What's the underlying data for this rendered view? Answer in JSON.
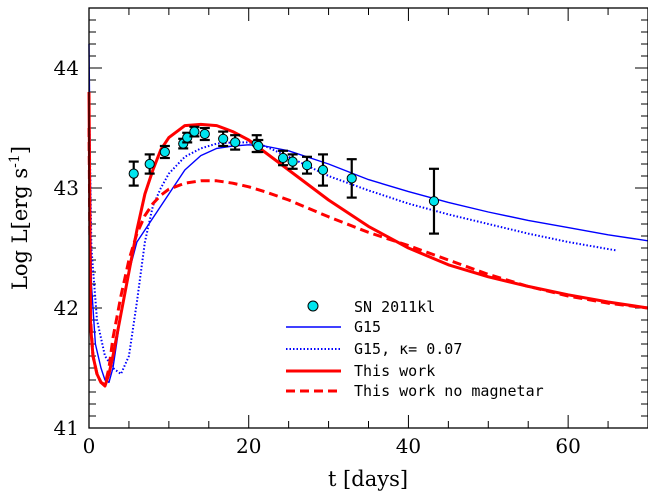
{
  "chart_data": {
    "type": "line",
    "xlabel": "t [days]",
    "ylabel_main": "Log L[erg s",
    "ylabel_sup": "-1",
    "ylabel_close": "]",
    "xlim": [
      0,
      70
    ],
    "ylim": [
      41,
      44.5
    ],
    "x_ticks": [
      0,
      20,
      40,
      60
    ],
    "y_ticks": [
      41,
      42,
      43,
      44
    ],
    "x_minor_step": 5,
    "y_minor_step": 0.1,
    "grid": false,
    "legend_position": "bottom-center",
    "colors": {
      "red": "#ff0000",
      "blue": "#0000ff",
      "points": "#00e5ee",
      "black": "#000000"
    },
    "observations": {
      "name": "SN 2011kl",
      "points": [
        {
          "x": 5.6,
          "y": 43.12,
          "err": 0.1
        },
        {
          "x": 7.6,
          "y": 43.2,
          "err": 0.08
        },
        {
          "x": 9.5,
          "y": 43.3,
          "err": 0.05
        },
        {
          "x": 11.8,
          "y": 43.37,
          "err": 0.04
        },
        {
          "x": 12.3,
          "y": 43.42,
          "err": 0.04
        },
        {
          "x": 13.2,
          "y": 43.47,
          "err": 0.04
        },
        {
          "x": 14.5,
          "y": 43.45,
          "err": 0.05
        },
        {
          "x": 16.8,
          "y": 43.41,
          "err": 0.06
        },
        {
          "x": 18.3,
          "y": 43.38,
          "err": 0.06
        },
        {
          "x": 21.0,
          "y": 43.37,
          "err": 0.07
        },
        {
          "x": 21.2,
          "y": 43.35,
          "err": 0.05
        },
        {
          "x": 24.3,
          "y": 43.25,
          "err": 0.06
        },
        {
          "x": 25.5,
          "y": 43.22,
          "err": 0.06
        },
        {
          "x": 27.3,
          "y": 43.19,
          "err": 0.07
        },
        {
          "x": 29.3,
          "y": 43.15,
          "err": 0.13
        },
        {
          "x": 32.9,
          "y": 43.08,
          "err": 0.16
        },
        {
          "x": 43.2,
          "y": 42.89,
          "err": 0.27
        }
      ]
    },
    "series": [
      {
        "name": "G15",
        "style": "solid-thin",
        "color": "#0000ff",
        "x": [
          0,
          0.3,
          0.8,
          1.5,
          2.0,
          2.5,
          3.0,
          4.0,
          5.0,
          6.0,
          7.0,
          8.0,
          10.0,
          12.0,
          14.0,
          16.0,
          18.0,
          20.0,
          22.0,
          25.0,
          30.0,
          35.0,
          40.0,
          45.0,
          50.0,
          55.0,
          60.0,
          65.0,
          70.0
        ],
        "y": [
          44.2,
          42.2,
          41.7,
          41.5,
          41.4,
          41.38,
          41.5,
          41.95,
          42.3,
          42.55,
          42.65,
          42.75,
          42.95,
          43.15,
          43.27,
          43.33,
          43.35,
          43.36,
          43.35,
          43.31,
          43.2,
          43.07,
          42.97,
          42.88,
          42.8,
          42.73,
          42.67,
          42.61,
          42.56
        ]
      },
      {
        "name": "G15, κ= 0.07",
        "style": "dotted",
        "color": "#0000ff",
        "x": [
          0,
          0.3,
          1.0,
          2.0,
          3.0,
          4.0,
          5.0,
          6.0,
          7.0,
          8.0,
          9.0,
          10.0,
          12.0,
          14.0,
          16.0,
          18.0,
          20.0,
          22.0,
          25.0,
          30.0,
          35.0,
          40.0,
          45.0,
          50.0,
          55.0,
          60.0,
          66.0
        ],
        "y": [
          43.8,
          42.5,
          41.9,
          41.6,
          41.5,
          41.45,
          41.6,
          42.05,
          42.55,
          42.85,
          43.0,
          43.12,
          43.26,
          43.33,
          43.37,
          43.38,
          43.38,
          43.35,
          43.26,
          43.1,
          42.98,
          42.87,
          42.78,
          42.7,
          42.62,
          42.55,
          42.48
        ]
      },
      {
        "name": "This work",
        "style": "solid-thick",
        "color": "#ff0000",
        "x": [
          0,
          0.2,
          0.5,
          1.0,
          1.5,
          2.0,
          2.5,
          3.0,
          4.0,
          5.0,
          6.0,
          7.0,
          8.0,
          9.0,
          10.0,
          12.0,
          14.0,
          16.0,
          18.0,
          20.0,
          22.0,
          25.0,
          30.0,
          35.0,
          40.0,
          45.0,
          50.0,
          55.0,
          60.0,
          65.0,
          70.0
        ],
        "y": [
          43.8,
          41.85,
          41.6,
          41.45,
          41.38,
          41.35,
          41.45,
          41.6,
          41.95,
          42.3,
          42.65,
          42.95,
          43.15,
          43.32,
          43.42,
          43.52,
          43.53,
          43.52,
          43.47,
          43.4,
          43.3,
          43.15,
          42.9,
          42.68,
          42.5,
          42.36,
          42.26,
          42.18,
          42.11,
          42.05,
          42.0
        ]
      },
      {
        "name": "This work no magnetar",
        "style": "dashed",
        "color": "#ff0000",
        "x": [
          0,
          0.2,
          0.5,
          1.0,
          1.5,
          2.0,
          2.5,
          3.0,
          4.0,
          5.0,
          6.0,
          7.0,
          8.0,
          9.0,
          10.0,
          12.0,
          14.0,
          16.0,
          18.0,
          20.0,
          22.0,
          25.0,
          30.0,
          35.0,
          40.0,
          45.0,
          50.0,
          55.0,
          60.0,
          65.0,
          70.0
        ],
        "y": [
          43.5,
          41.9,
          41.6,
          41.45,
          41.38,
          41.36,
          41.5,
          41.75,
          42.1,
          42.4,
          42.62,
          42.77,
          42.87,
          42.94,
          42.99,
          43.04,
          43.06,
          43.06,
          43.04,
          43.01,
          42.97,
          42.9,
          42.76,
          42.63,
          42.52,
          42.4,
          42.28,
          42.18,
          42.1,
          42.04,
          42.0
        ]
      }
    ]
  }
}
